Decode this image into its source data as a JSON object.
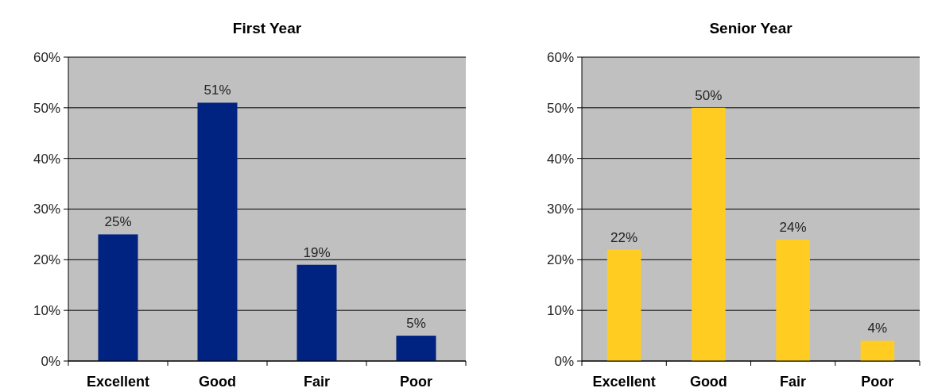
{
  "chart_data": [
    {
      "type": "bar",
      "title": "First Year",
      "categories": [
        "Excellent",
        "Good",
        "Fair",
        "Poor"
      ],
      "values": [
        25,
        51,
        19,
        5
      ],
      "color": "#002280",
      "value_labels": [
        "25%",
        "51%",
        "19%",
        "5%"
      ],
      "ylim": [
        0,
        60
      ],
      "yticks": [
        {
          "value": 0,
          "label": "0%"
        },
        {
          "value": 10,
          "label": "10%"
        },
        {
          "value": 20,
          "label": "20%"
        },
        {
          "value": 30,
          "label": "30%"
        },
        {
          "value": 40,
          "label": "40%"
        },
        {
          "value": 50,
          "label": "50%"
        },
        {
          "value": 60,
          "label": "60%"
        }
      ],
      "grid": "y"
    },
    {
      "type": "bar",
      "title": "Senior Year",
      "categories": [
        "Excellent",
        "Good",
        "Fair",
        "Poor"
      ],
      "values": [
        22,
        50,
        24,
        4
      ],
      "color": "#ffcc22",
      "value_labels": [
        "22%",
        "50%",
        "24%",
        "4%"
      ],
      "ylim": [
        0,
        60
      ],
      "yticks": [
        {
          "value": 0,
          "label": "0%"
        },
        {
          "value": 10,
          "label": "10%"
        },
        {
          "value": 20,
          "label": "20%"
        },
        {
          "value": 30,
          "label": "30%"
        },
        {
          "value": 40,
          "label": "40%"
        },
        {
          "value": 50,
          "label": "50%"
        },
        {
          "value": 60,
          "label": "60%"
        }
      ],
      "grid": "y"
    }
  ]
}
